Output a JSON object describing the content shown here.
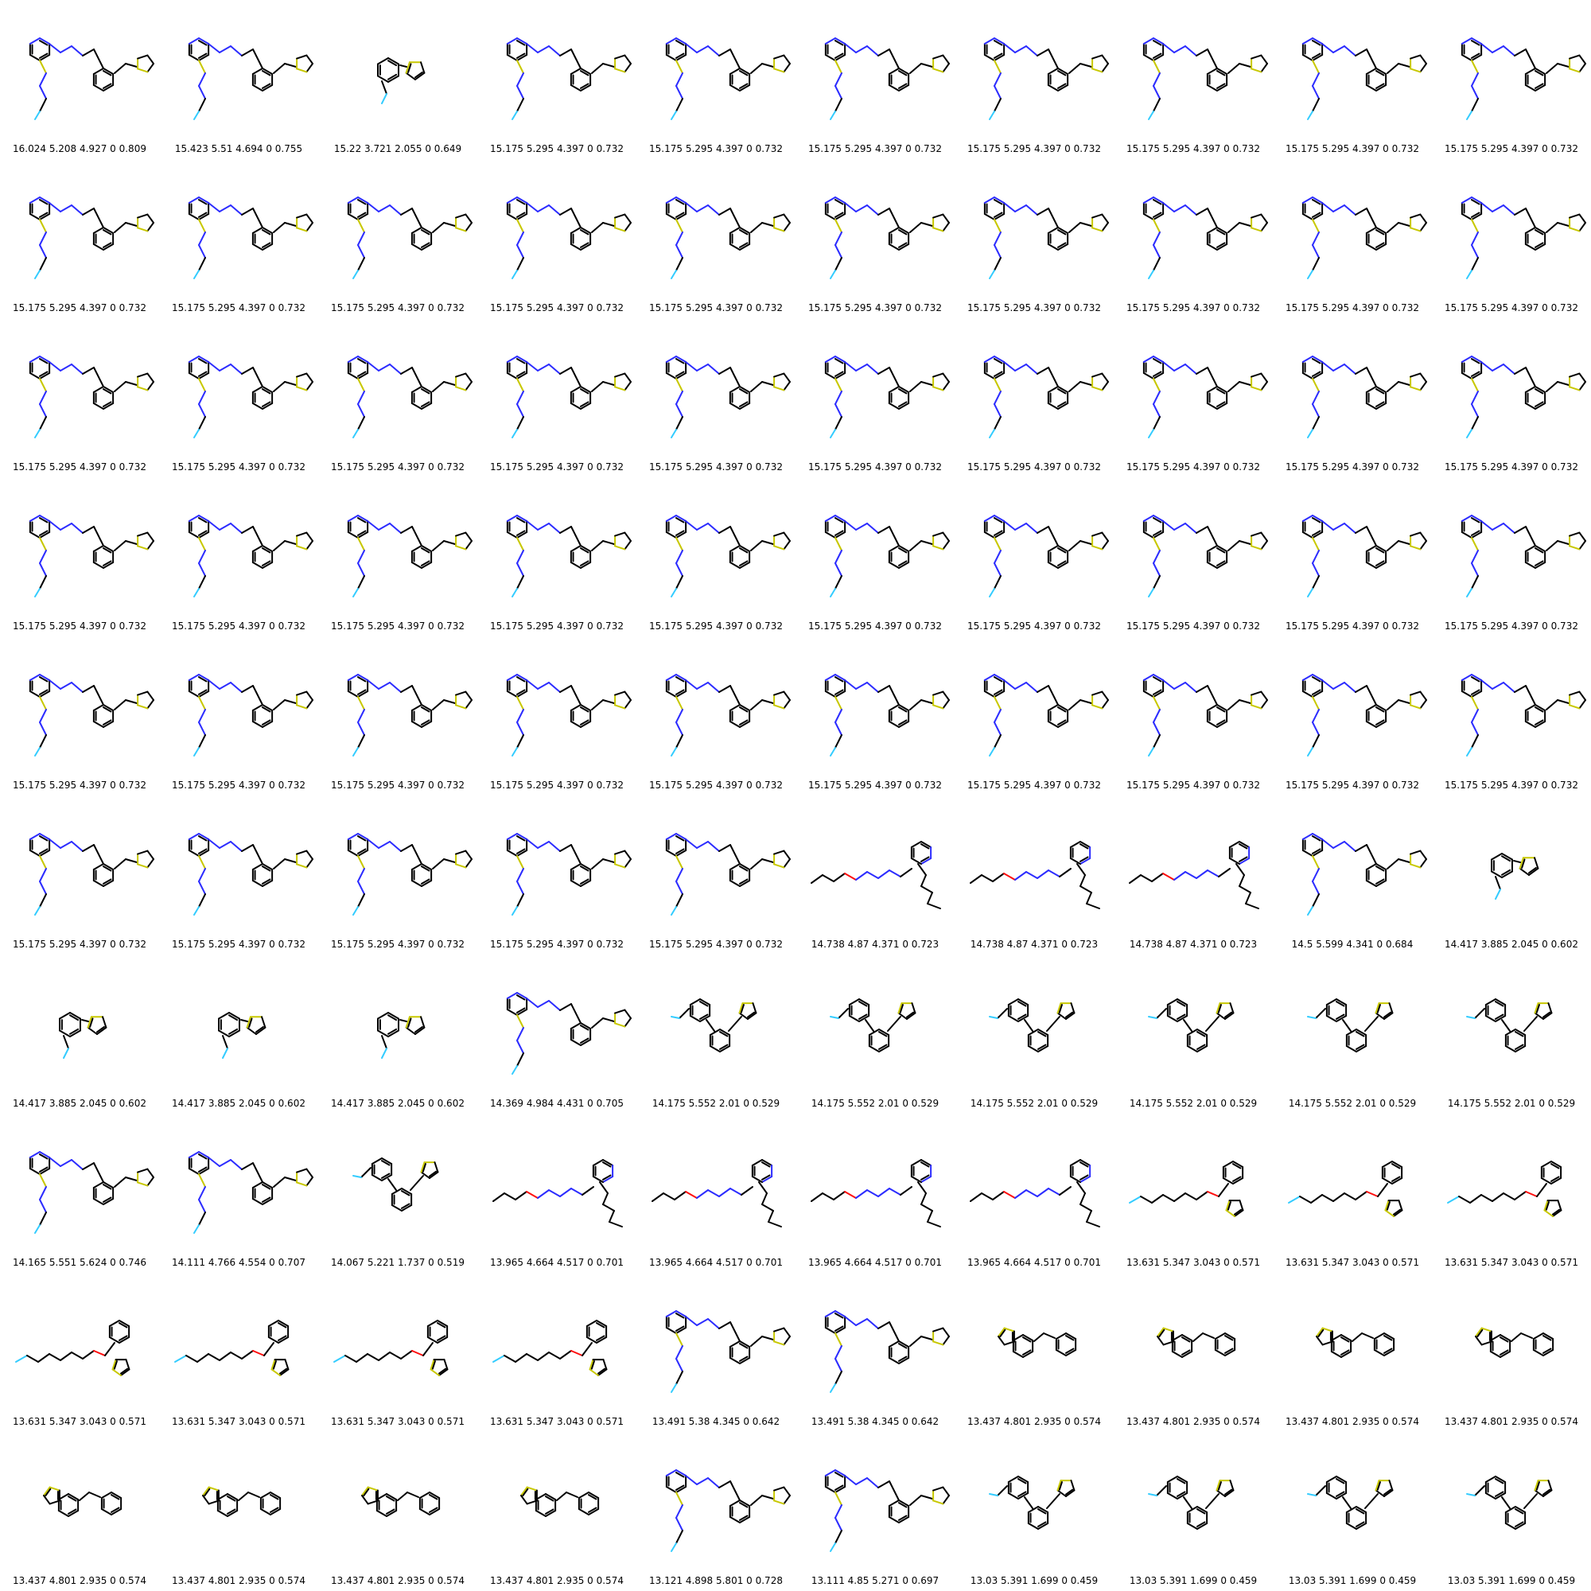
{
  "colors": {
    "bond": "#000000",
    "nitrogen": "#2c2cff",
    "sulfur": "#c8c800",
    "oxygen": "#ff0d0d",
    "fluorine": "#33ccff"
  },
  "grid": {
    "columns": 10,
    "rows": 10,
    "cells": [
      {
        "label": "16.024 5.208 4.927 0 0.809",
        "motif": "pyridine-chain"
      },
      {
        "label": "15.423 5.51 4.694 0 0.755",
        "motif": "pyridine-chain"
      },
      {
        "label": "15.22 3.721 2.055 0 0.649",
        "motif": "biaryl-thiophene"
      },
      {
        "label": "15.175 5.295 4.397 0 0.732",
        "motif": "pyridine-chain"
      },
      {
        "label": "15.175 5.295 4.397 0 0.732",
        "motif": "pyridine-chain"
      },
      {
        "label": "15.175 5.295 4.397 0 0.732",
        "motif": "pyridine-chain"
      },
      {
        "label": "15.175 5.295 4.397 0 0.732",
        "motif": "pyridine-chain"
      },
      {
        "label": "15.175 5.295 4.397 0 0.732",
        "motif": "pyridine-chain"
      },
      {
        "label": "15.175 5.295 4.397 0 0.732",
        "motif": "pyridine-chain"
      },
      {
        "label": "15.175 5.295 4.397 0 0.732",
        "motif": "pyridine-chain"
      },
      {
        "label": "15.175 5.295 4.397 0 0.732",
        "motif": "pyridine-chain"
      },
      {
        "label": "15.175 5.295 4.397 0 0.732",
        "motif": "pyridine-chain"
      },
      {
        "label": "15.175 5.295 4.397 0 0.732",
        "motif": "pyridine-chain"
      },
      {
        "label": "15.175 5.295 4.397 0 0.732",
        "motif": "pyridine-chain"
      },
      {
        "label": "15.175 5.295 4.397 0 0.732",
        "motif": "pyridine-chain"
      },
      {
        "label": "15.175 5.295 4.397 0 0.732",
        "motif": "pyridine-chain"
      },
      {
        "label": "15.175 5.295 4.397 0 0.732",
        "motif": "pyridine-chain"
      },
      {
        "label": "15.175 5.295 4.397 0 0.732",
        "motif": "pyridine-chain"
      },
      {
        "label": "15.175 5.295 4.397 0 0.732",
        "motif": "pyridine-chain"
      },
      {
        "label": "15.175 5.295 4.397 0 0.732",
        "motif": "pyridine-chain"
      },
      {
        "label": "15.175 5.295 4.397 0 0.732",
        "motif": "pyridine-chain"
      },
      {
        "label": "15.175 5.295 4.397 0 0.732",
        "motif": "pyridine-chain"
      },
      {
        "label": "15.175 5.295 4.397 0 0.732",
        "motif": "pyridine-chain"
      },
      {
        "label": "15.175 5.295 4.397 0 0.732",
        "motif": "pyridine-chain"
      },
      {
        "label": "15.175 5.295 4.397 0 0.732",
        "motif": "pyridine-chain"
      },
      {
        "label": "15.175 5.295 4.397 0 0.732",
        "motif": "pyridine-chain"
      },
      {
        "label": "15.175 5.295 4.397 0 0.732",
        "motif": "pyridine-chain"
      },
      {
        "label": "15.175 5.295 4.397 0 0.732",
        "motif": "pyridine-chain"
      },
      {
        "label": "15.175 5.295 4.397 0 0.732",
        "motif": "pyridine-chain"
      },
      {
        "label": "15.175 5.295 4.397 0 0.732",
        "motif": "pyridine-chain"
      },
      {
        "label": "15.175 5.295 4.397 0 0.732",
        "motif": "pyridine-chain"
      },
      {
        "label": "15.175 5.295 4.397 0 0.732",
        "motif": "pyridine-chain"
      },
      {
        "label": "15.175 5.295 4.397 0 0.732",
        "motif": "pyridine-chain"
      },
      {
        "label": "15.175 5.295 4.397 0 0.732",
        "motif": "pyridine-chain"
      },
      {
        "label": "15.175 5.295 4.397 0 0.732",
        "motif": "pyridine-chain"
      },
      {
        "label": "15.175 5.295 4.397 0 0.732",
        "motif": "pyridine-chain"
      },
      {
        "label": "15.175 5.295 4.397 0 0.732",
        "motif": "pyridine-chain"
      },
      {
        "label": "15.175 5.295 4.397 0 0.732",
        "motif": "pyridine-chain"
      },
      {
        "label": "15.175 5.295 4.397 0 0.732",
        "motif": "pyridine-chain"
      },
      {
        "label": "15.175 5.295 4.397 0 0.732",
        "motif": "pyridine-chain"
      },
      {
        "label": "15.175 5.295 4.397 0 0.732",
        "motif": "pyridine-chain"
      },
      {
        "label": "15.175 5.295 4.397 0 0.732",
        "motif": "pyridine-chain"
      },
      {
        "label": "15.175 5.295 4.397 0 0.732",
        "motif": "pyridine-chain"
      },
      {
        "label": "15.175 5.295 4.397 0 0.732",
        "motif": "pyridine-chain"
      },
      {
        "label": "15.175 5.295 4.397 0 0.732",
        "motif": "pyridine-chain"
      },
      {
        "label": "15.175 5.295 4.397 0 0.732",
        "motif": "pyridine-chain"
      },
      {
        "label": "15.175 5.295 4.397 0 0.732",
        "motif": "pyridine-chain"
      },
      {
        "label": "15.175 5.295 4.397 0 0.732",
        "motif": "pyridine-chain"
      },
      {
        "label": "15.175 5.295 4.397 0 0.732",
        "motif": "pyridine-chain"
      },
      {
        "label": "15.175 5.295 4.397 0 0.732",
        "motif": "pyridine-chain"
      },
      {
        "label": "15.175 5.295 4.397 0 0.732",
        "motif": "pyridine-chain"
      },
      {
        "label": "15.175 5.295 4.397 0 0.732",
        "motif": "pyridine-chain"
      },
      {
        "label": "15.175 5.295 4.397 0 0.732",
        "motif": "pyridine-chain"
      },
      {
        "label": "15.175 5.295 4.397 0 0.732",
        "motif": "pyridine-chain"
      },
      {
        "label": "15.175 5.295 4.397 0 0.732",
        "motif": "pyridine-chain"
      },
      {
        "label": "14.738 4.87 4.371 0 0.723",
        "motif": "polyene-pyridine"
      },
      {
        "label": "14.738 4.87 4.371 0 0.723",
        "motif": "polyene-pyridine"
      },
      {
        "label": "14.738 4.87 4.371 0 0.723",
        "motif": "polyene-pyridine"
      },
      {
        "label": "14.5 5.599 4.341 0 0.684",
        "motif": "pyridine-chain"
      },
      {
        "label": "14.417 3.885 2.045 0 0.602",
        "motif": "biaryl-thiophene"
      },
      {
        "label": "14.417 3.885 2.045 0 0.602",
        "motif": "biaryl-thiophene"
      },
      {
        "label": "14.417 3.885 2.045 0 0.602",
        "motif": "biaryl-thiophene"
      },
      {
        "label": "14.417 3.885 2.045 0 0.602",
        "motif": "biaryl-thiophene"
      },
      {
        "label": "14.369 4.984 4.431 0 0.705",
        "motif": "pyridine-chain"
      },
      {
        "label": "14.175 5.552 2.01 0 0.529",
        "motif": "terphenyl-thiophene"
      },
      {
        "label": "14.175 5.552 2.01 0 0.529",
        "motif": "terphenyl-thiophene"
      },
      {
        "label": "14.175 5.552 2.01 0 0.529",
        "motif": "terphenyl-thiophene"
      },
      {
        "label": "14.175 5.552 2.01 0 0.529",
        "motif": "terphenyl-thiophene"
      },
      {
        "label": "14.175 5.552 2.01 0 0.529",
        "motif": "terphenyl-thiophene"
      },
      {
        "label": "14.175 5.552 2.01 0 0.529",
        "motif": "terphenyl-thiophene"
      },
      {
        "label": "14.165 5.551 5.624 0 0.746",
        "motif": "pyridine-chain"
      },
      {
        "label": "14.111 4.766 4.554 0 0.707",
        "motif": "pyridine-chain"
      },
      {
        "label": "14.067 5.221 1.737 0 0.519",
        "motif": "terphenyl-thiophene"
      },
      {
        "label": "13.965 4.664 4.517 0 0.701",
        "motif": "polyene-pyridine"
      },
      {
        "label": "13.965 4.664 4.517 0 0.701",
        "motif": "polyene-pyridine"
      },
      {
        "label": "13.965 4.664 4.517 0 0.701",
        "motif": "polyene-pyridine"
      },
      {
        "label": "13.965 4.664 4.517 0 0.701",
        "motif": "polyene-pyridine"
      },
      {
        "label": "13.631 5.347 3.043 0 0.571",
        "motif": "polyene-ether"
      },
      {
        "label": "13.631 5.347 3.043 0 0.571",
        "motif": "polyene-ether"
      },
      {
        "label": "13.631 5.347 3.043 0 0.571",
        "motif": "polyene-ether"
      },
      {
        "label": "13.631 5.347 3.043 0 0.571",
        "motif": "polyene-ether"
      },
      {
        "label": "13.631 5.347 3.043 0 0.571",
        "motif": "polyene-ether"
      },
      {
        "label": "13.631 5.347 3.043 0 0.571",
        "motif": "polyene-ether"
      },
      {
        "label": "13.631 5.347 3.043 0 0.571",
        "motif": "polyene-ether"
      },
      {
        "label": "13.491 5.38 4.345 0 0.642",
        "motif": "pyridine-chain"
      },
      {
        "label": "13.491 5.38 4.345 0 0.642",
        "motif": "pyridine-chain"
      },
      {
        "label": "13.437 4.801 2.935 0 0.574",
        "motif": "benzothiophene"
      },
      {
        "label": "13.437 4.801 2.935 0 0.574",
        "motif": "benzothiophene"
      },
      {
        "label": "13.437 4.801 2.935 0 0.574",
        "motif": "benzothiophene"
      },
      {
        "label": "13.437 4.801 2.935 0 0.574",
        "motif": "benzothiophene"
      },
      {
        "label": "13.437 4.801 2.935 0 0.574",
        "motif": "benzothiophene"
      },
      {
        "label": "13.437 4.801 2.935 0 0.574",
        "motif": "benzothiophene"
      },
      {
        "label": "13.437 4.801 2.935 0 0.574",
        "motif": "benzothiophene"
      },
      {
        "label": "13.437 4.801 2.935 0 0.574",
        "motif": "benzothiophene"
      },
      {
        "label": "13.121 4.898 5.801 0 0.728",
        "motif": "pyridine-chain"
      },
      {
        "label": "13.111 4.85 5.271 0 0.697",
        "motif": "pyridine-chain"
      },
      {
        "label": "13.03 5.391 1.699 0 0.459",
        "motif": "terphenyl-thiophene"
      },
      {
        "label": "13.03 5.391 1.699 0 0.459",
        "motif": "terphenyl-thiophene"
      },
      {
        "label": "13.03 5.391 1.699 0 0.459",
        "motif": "terphenyl-thiophene"
      },
      {
        "label": "13.03 5.391 1.699 0 0.459",
        "motif": "terphenyl-thiophene"
      }
    ]
  }
}
